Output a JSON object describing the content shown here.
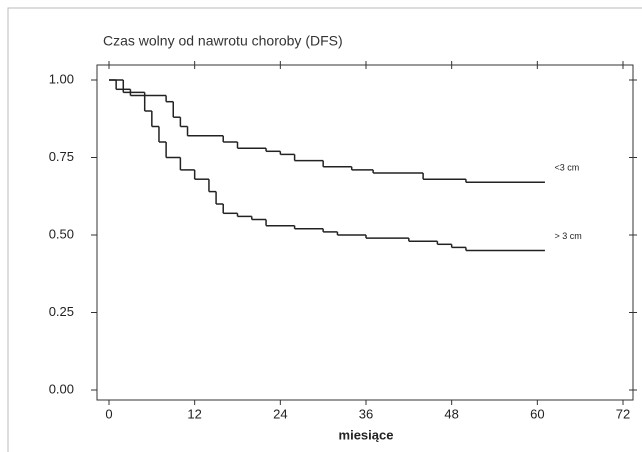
{
  "chart_data": {
    "type": "line",
    "step": true,
    "title": "Czas wolny od nawrotu choroby (DFS)",
    "xlabel": "miesiące",
    "xlim": [
      0,
      72
    ],
    "xticks": [
      0,
      12,
      24,
      36,
      48,
      60,
      72
    ],
    "ylim": [
      0,
      1
    ],
    "yticks": [
      {
        "value": 0,
        "label": "0.00"
      },
      {
        "value": 0.25,
        "label": "0.25"
      },
      {
        "value": 0.5,
        "label": "0.50"
      },
      {
        "value": 0.75,
        "label": "0.75"
      },
      {
        "value": 1,
        "label": "1.00"
      }
    ],
    "series": [
      {
        "name": "<3 cm",
        "color": "#222222",
        "x": [
          0,
          2,
          5,
          8,
          9,
          10,
          11,
          16,
          18,
          22,
          24,
          26,
          30,
          34,
          37,
          44,
          50,
          61
        ],
        "values": [
          1.0,
          0.96,
          0.95,
          0.93,
          0.88,
          0.85,
          0.82,
          0.8,
          0.78,
          0.77,
          0.76,
          0.74,
          0.72,
          0.71,
          0.7,
          0.68,
          0.67,
          0.67
        ]
      },
      {
        "name": "> 3 cm",
        "color": "#222222",
        "x": [
          0,
          1,
          3,
          5,
          6,
          7,
          8,
          10,
          12,
          14,
          15,
          16,
          18,
          20,
          22,
          26,
          30,
          32,
          36,
          42,
          46,
          48,
          50,
          61
        ],
        "values": [
          1.0,
          0.97,
          0.95,
          0.9,
          0.85,
          0.8,
          0.75,
          0.71,
          0.68,
          0.64,
          0.6,
          0.57,
          0.56,
          0.55,
          0.53,
          0.52,
          0.51,
          0.5,
          0.49,
          0.48,
          0.47,
          0.46,
          0.45,
          0.45
        ]
      }
    ]
  }
}
